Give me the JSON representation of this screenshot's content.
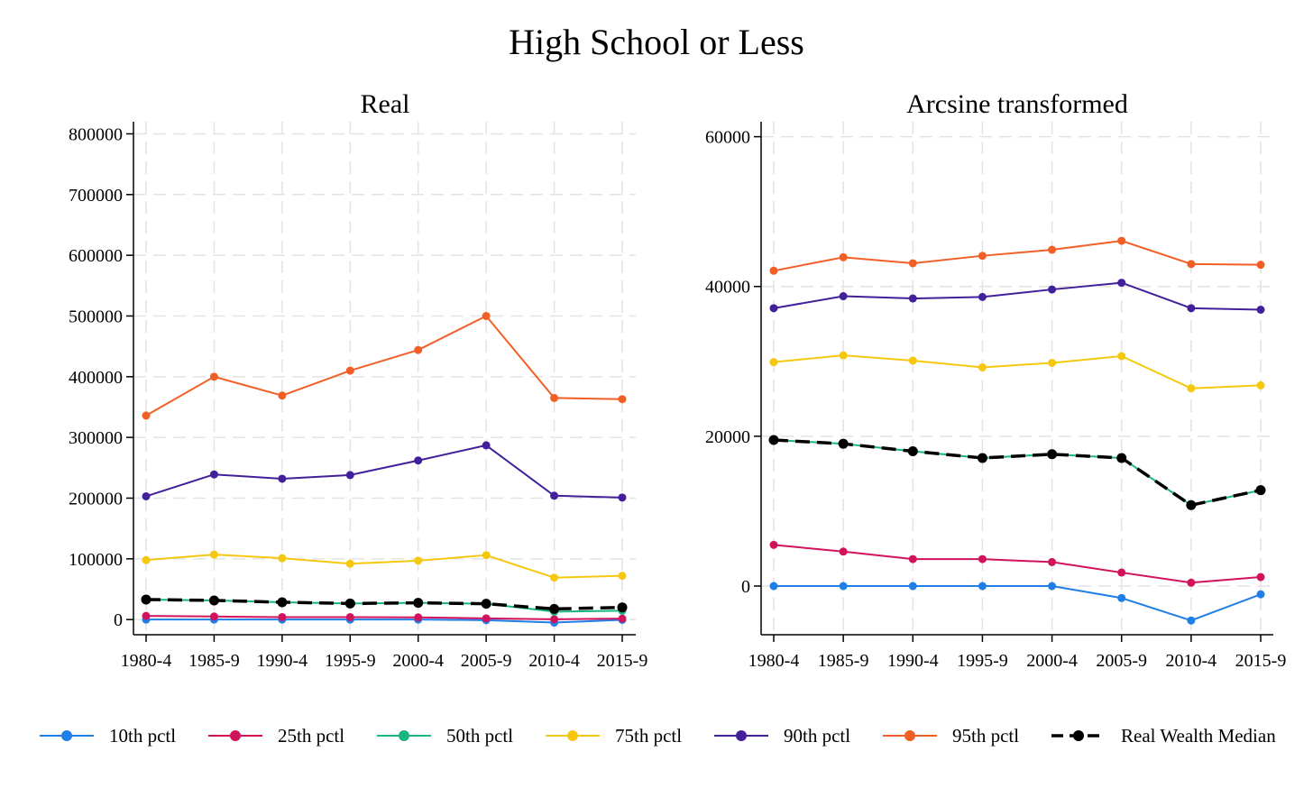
{
  "figure": {
    "title": "High School or Less"
  },
  "chart_data": [
    {
      "type": "line",
      "title": "Real",
      "xlabel": "",
      "ylabel": "",
      "categories": [
        "1980-4",
        "1985-9",
        "1990-4",
        "1995-9",
        "2000-4",
        "2005-9",
        "2010-4",
        "2015-9"
      ],
      "ylim": [
        -25000,
        820000
      ],
      "yticks": [
        0,
        100000,
        200000,
        300000,
        400000,
        500000,
        600000,
        700000,
        800000
      ],
      "ytick_labels": [
        "0",
        "100000",
        "200000",
        "300000",
        "400000",
        "500000",
        "600000",
        "700000",
        "800000"
      ],
      "grid": true,
      "series": [
        {
          "name": "10th pctl",
          "color": "#1f7fe6",
          "style": "solid",
          "values": [
            0,
            0,
            0,
            0,
            0,
            -1000,
            -5000,
            -500
          ]
        },
        {
          "name": "25th pctl",
          "color": "#d1135c",
          "style": "solid",
          "values": [
            6000,
            5000,
            4000,
            4000,
            3500,
            2000,
            500,
            1500
          ]
        },
        {
          "name": "50th pctl",
          "color": "#17b584",
          "style": "solid",
          "values": [
            33000,
            31500,
            28500,
            26500,
            27500,
            26000,
            13000,
            14500
          ]
        },
        {
          "name": "75th pctl",
          "color": "#f5c80f",
          "style": "solid",
          "values": [
            98000,
            107000,
            101000,
            92000,
            97000,
            106000,
            69000,
            72000
          ]
        },
        {
          "name": "90th pctl",
          "color": "#42209a",
          "style": "solid",
          "values": [
            203000,
            239000,
            232000,
            238000,
            262000,
            287000,
            204000,
            201000
          ]
        },
        {
          "name": "95th pctl",
          "color": "#f25f26",
          "style": "solid",
          "values": [
            336000,
            400000,
            369000,
            410000,
            444000,
            500000,
            365000,
            363000
          ]
        },
        {
          "name": "Real Wealth Median",
          "color": "#000000",
          "style": "dashed",
          "values": [
            33000,
            31500,
            28500,
            26500,
            27500,
            26000,
            17500,
            20000
          ]
        }
      ]
    },
    {
      "type": "line",
      "title": "Arcsine transformed",
      "xlabel": "",
      "ylabel": "",
      "categories": [
        "1980-4",
        "1985-9",
        "1990-4",
        "1995-9",
        "2000-4",
        "2005-9",
        "2010-4",
        "2015-9"
      ],
      "ylim": [
        -6500,
        62000
      ],
      "yticks": [
        0,
        20000,
        40000,
        60000
      ],
      "ytick_labels": [
        "0",
        "20000",
        "40000",
        "60000"
      ],
      "grid": true,
      "series": [
        {
          "name": "10th pctl",
          "color": "#1f7fe6",
          "style": "solid",
          "values": [
            0,
            0,
            0,
            0,
            0,
            -1600,
            -4600,
            -1100
          ]
        },
        {
          "name": "25th pctl",
          "color": "#d1135c",
          "style": "solid",
          "values": [
            5500,
            4600,
            3600,
            3600,
            3200,
            1800,
            450,
            1200
          ]
        },
        {
          "name": "50th pctl",
          "color": "#17b584",
          "style": "solid",
          "values": [
            19500,
            19000,
            18000,
            17100,
            17600,
            17100,
            10800,
            12800
          ]
        },
        {
          "name": "75th pctl",
          "color": "#f5c80f",
          "style": "solid",
          "values": [
            29900,
            30800,
            30100,
            29200,
            29800,
            30700,
            26400,
            26800
          ]
        },
        {
          "name": "90th pctl",
          "color": "#42209a",
          "style": "solid",
          "values": [
            37100,
            38700,
            38400,
            38600,
            39600,
            40500,
            37100,
            36900
          ]
        },
        {
          "name": "95th pctl",
          "color": "#f25f26",
          "style": "solid",
          "values": [
            42100,
            43900,
            43100,
            44100,
            44900,
            46100,
            43000,
            42900
          ]
        },
        {
          "name": "Real Wealth Median",
          "color": "#000000",
          "style": "dashed",
          "values": [
            19500,
            19000,
            18000,
            17100,
            17600,
            17100,
            10800,
            12800
          ]
        }
      ]
    }
  ],
  "legend": {
    "placement": "bottom",
    "items": [
      {
        "label": "10th pctl",
        "color": "#1f7fe6",
        "style": "solid"
      },
      {
        "label": "25th pctl",
        "color": "#d1135c",
        "style": "solid"
      },
      {
        "label": "50th pctl",
        "color": "#17b584",
        "style": "solid"
      },
      {
        "label": "75th pctl",
        "color": "#f5c80f",
        "style": "solid"
      },
      {
        "label": "90th pctl",
        "color": "#42209a",
        "style": "solid"
      },
      {
        "label": "95th pctl",
        "color": "#f25f26",
        "style": "solid"
      },
      {
        "label": "Real Wealth Median",
        "color": "#000000",
        "style": "dashed"
      }
    ]
  }
}
